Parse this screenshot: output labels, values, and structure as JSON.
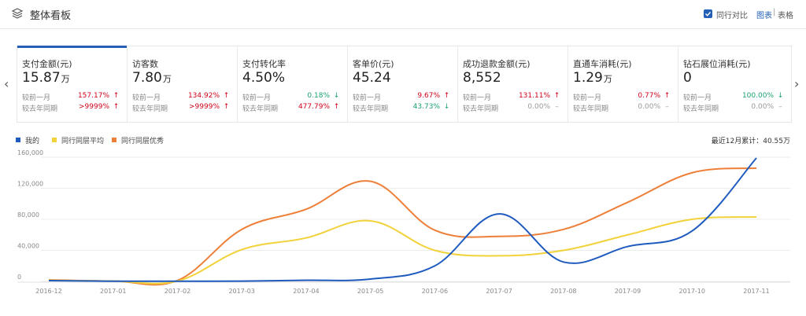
{
  "header": {
    "title": "整体看板",
    "compare_label": "同行对比",
    "view_chart": "图表",
    "view_separator": "|",
    "view_table": "表格"
  },
  "nav": {
    "prev": "‹",
    "next": "›"
  },
  "metrics": [
    {
      "label": "支付金额(元)",
      "value": "15.87",
      "unit": "万",
      "row1_label": "较前一月",
      "row1_pct": "157.17%",
      "row1_dir": "up",
      "row2_label": "较去年同期",
      "row2_pct": ">9999%",
      "row2_dir": "up"
    },
    {
      "label": "访客数",
      "value": "7.80",
      "unit": "万",
      "row1_label": "较前一月",
      "row1_pct": "134.92%",
      "row1_dir": "up",
      "row2_label": "较去年同期",
      "row2_pct": ">9999%",
      "row2_dir": "up"
    },
    {
      "label": "支付转化率",
      "value": "4.50%",
      "unit": "",
      "row1_label": "较前一月",
      "row1_pct": "0.18%",
      "row1_dir": "down",
      "row2_label": "较去年同期",
      "row2_pct": "477.79%",
      "row2_dir": "up"
    },
    {
      "label": "客单价(元)",
      "value": "45.24",
      "unit": "",
      "row1_label": "较前一月",
      "row1_pct": "9.67%",
      "row1_dir": "up",
      "row2_label": "较去年同期",
      "row2_pct": "43.73%",
      "row2_dir": "down"
    },
    {
      "label": "成功退款金额(元)",
      "value": "8,552",
      "unit": "",
      "row1_label": "较前一月",
      "row1_pct": "131.11%",
      "row1_dir": "up",
      "row2_label": "较去年同期",
      "row2_pct": "0.00%",
      "row2_dir": "flat"
    },
    {
      "label": "直通车消耗(元)",
      "value": "1.29",
      "unit": "万",
      "row1_label": "较前一月",
      "row1_pct": "0.77%",
      "row1_dir": "up",
      "row2_label": "较去年同期",
      "row2_pct": "0.00%",
      "row2_dir": "flat"
    },
    {
      "label": "钻石展位消耗(元)",
      "value": "0",
      "unit": "",
      "row1_label": "较前一月",
      "row1_pct": "100.00%",
      "row1_dir": "down",
      "row2_label": "较去年同期",
      "row2_pct": "0.00%",
      "row2_dir": "flat"
    }
  ],
  "legend": {
    "cumulative": "最近12月累计：40.55万"
  },
  "colors": {
    "me": "#1f5bbf",
    "avg": "#f2d23a",
    "excellent": "#ee7f39",
    "up": "#d0021b",
    "down": "#1aa36d",
    "accent": "#2560b6"
  },
  "icons": {
    "header": "layers-icon",
    "checkbox": "checkbox-checked-icon",
    "up": "arrow-up-icon",
    "down": "arrow-down-icon",
    "flat": "dash-icon"
  },
  "chart_data": {
    "type": "line",
    "categories": [
      "2016-12",
      "2017-01",
      "2017-02",
      "2017-03",
      "2017-04",
      "2017-05",
      "2017-06",
      "2017-07",
      "2017-08",
      "2017-09",
      "2017-10",
      "2017-11"
    ],
    "yticks": [
      0,
      40000,
      80000,
      120000,
      160000
    ],
    "ytick_labels": [
      "0",
      "40,000",
      "80,000",
      "120,000",
      "160,000"
    ],
    "ylim": [
      0,
      160000
    ],
    "grid": true,
    "legend_position": "top-left",
    "series": [
      {
        "name": "我的",
        "color": "#1f5bbf",
        "values": [
          1000,
          300,
          300,
          400,
          1500,
          3000,
          20000,
          87000,
          25000,
          45000,
          65000,
          159000
        ]
      },
      {
        "name": "同行同层平均",
        "color": "#f2d23a",
        "values": [
          1500,
          400,
          500,
          41000,
          56000,
          78000,
          40000,
          33000,
          40000,
          60000,
          80000,
          83000
        ]
      },
      {
        "name": "同行同层优秀",
        "color": "#ee7f39",
        "values": [
          2000,
          500,
          1200,
          67000,
          93000,
          129000,
          66000,
          58000,
          67000,
          102000,
          140000,
          146000
        ]
      }
    ]
  }
}
